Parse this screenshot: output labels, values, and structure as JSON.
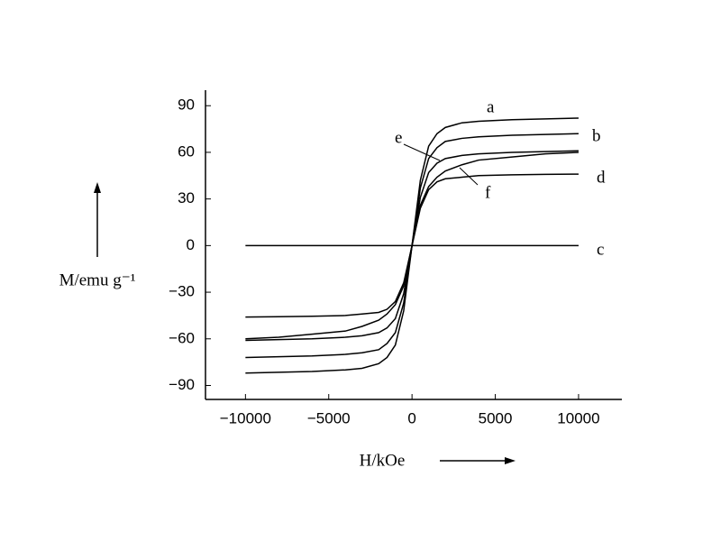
{
  "chart_data": {
    "type": "line",
    "xlabel": "H/kOe",
    "ylabel": "M/emu g⁻¹",
    "x": [
      -10000,
      -8000,
      -6000,
      -4000,
      -3000,
      -2000,
      -1500,
      -1000,
      -500,
      0,
      500,
      1000,
      1500,
      2000,
      3000,
      4000,
      6000,
      8000,
      10000
    ],
    "series": [
      {
        "name": "a",
        "color": "#000000",
        "values": [
          -82,
          -81.5,
          -81,
          -80,
          -79,
          -76,
          -72,
          -64,
          -42,
          0,
          42,
          64,
          72,
          76,
          79,
          80,
          81,
          81.5,
          82
        ]
      },
      {
        "name": "b",
        "color": "#000000",
        "values": [
          -72,
          -71.5,
          -71,
          -70,
          -69,
          -67,
          -63,
          -56,
          -37,
          0,
          37,
          56,
          63,
          67,
          69,
          70,
          71,
          71.5,
          72
        ]
      },
      {
        "name": "c",
        "color": "#000000",
        "values": [
          0,
          0,
          0,
          0,
          0,
          0,
          0,
          0,
          0,
          0,
          0,
          0,
          0,
          0,
          0,
          0,
          0,
          0,
          0
        ]
      },
      {
        "name": "d",
        "color": "#000000",
        "values": [
          -46,
          -45.8,
          -45.5,
          -45,
          -44,
          -43,
          -41,
          -36,
          -24,
          0,
          24,
          36,
          41,
          43,
          44,
          45,
          45.5,
          45.8,
          46
        ]
      },
      {
        "name": "e",
        "color": "#000000",
        "values": [
          -61,
          -60.5,
          -60,
          -59,
          -58,
          -56,
          -53,
          -47,
          -31,
          0,
          31,
          47,
          53,
          56,
          58,
          59,
          60,
          60.5,
          61
        ]
      },
      {
        "name": "f",
        "color": "#000000",
        "values": [
          -60,
          -59,
          -57,
          -55,
          -52,
          -48,
          -44,
          -38,
          -26,
          0,
          26,
          38,
          44,
          48,
          52,
          55,
          57,
          59,
          60
        ]
      }
    ],
    "xlim": [
      -12400,
      12600
    ],
    "xticks": [
      {
        "value": -10000,
        "label": "−10000"
      },
      {
        "value": -5000,
        "label": "−5000"
      },
      0,
      5000,
      10000
    ],
    "ylim": [
      -99,
      100
    ],
    "yticks": [
      {
        "value": -90,
        "label": "−90"
      },
      {
        "value": -60,
        "label": "−60"
      },
      {
        "value": -30,
        "label": "−30"
      },
      0,
      30,
      60,
      90
    ]
  }
}
